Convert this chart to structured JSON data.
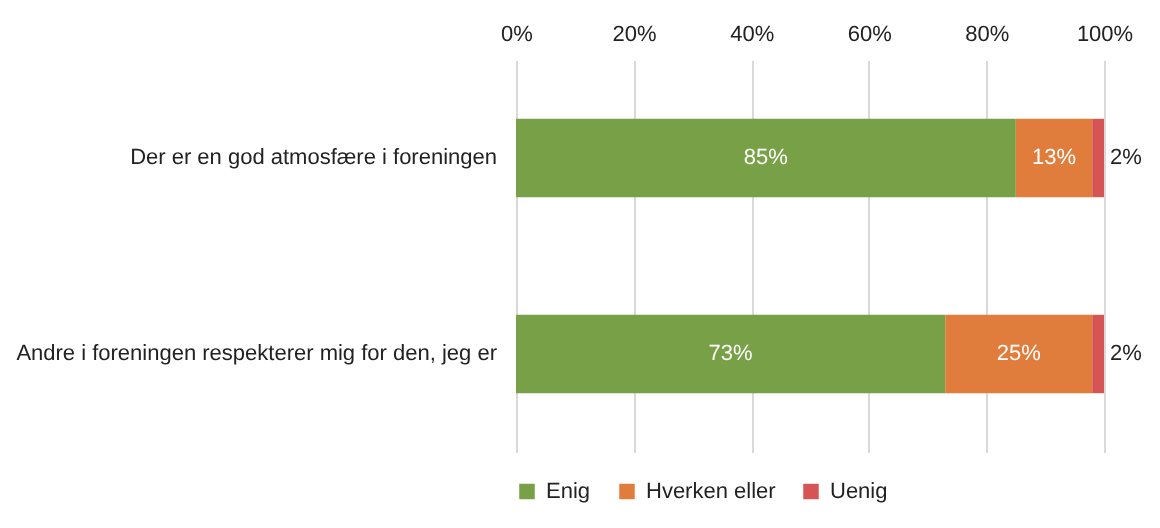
{
  "chart_data": {
    "type": "bar",
    "orientation": "horizontal",
    "stacked": true,
    "categories": [
      "Der er en god atmosfære i foreningen",
      "Andre i foreningen respekterer mig for den, jeg er"
    ],
    "series": [
      {
        "name": "Enig",
        "color": "#77a047",
        "values": [
          85,
          73
        ],
        "value_labels": [
          "85%",
          "73%"
        ]
      },
      {
        "name": "Hverken eller",
        "color": "#e07d3c",
        "values": [
          13,
          25
        ],
        "value_labels": [
          "13%",
          "25%"
        ]
      },
      {
        "name": "Uenig",
        "color": "#d65454",
        "values": [
          2,
          2
        ],
        "value_labels": [
          "2%",
          "2%"
        ]
      }
    ],
    "xlim": [
      0,
      100
    ],
    "xticks": [
      {
        "value": 0,
        "label": "0%"
      },
      {
        "value": 20,
        "label": "20%"
      },
      {
        "value": 40,
        "label": "40%"
      },
      {
        "value": 60,
        "label": "60%"
      },
      {
        "value": 80,
        "label": "80%"
      },
      {
        "value": 100,
        "label": "100%"
      }
    ],
    "grid": "x",
    "legend": "bottom"
  }
}
